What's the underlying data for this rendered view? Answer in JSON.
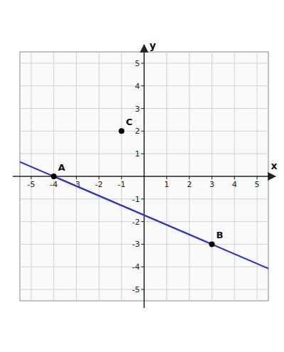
{
  "chart_data": {
    "type": "scatter",
    "x_label": "x",
    "y_label": "y",
    "xlim": [
      -5.5,
      5.5
    ],
    "ylim": [
      -5.5,
      5.5
    ],
    "xticks": [
      -5,
      -4,
      -3,
      -2,
      -1,
      1,
      2,
      3,
      4,
      5
    ],
    "yticks": [
      -5,
      -4,
      -3,
      -2,
      -1,
      1,
      2,
      3,
      4,
      5
    ],
    "grid": true,
    "series": [
      {
        "type": "line",
        "color": "#3333cc",
        "x": [
          -4,
          3
        ],
        "values": [
          0,
          -3
        ]
      },
      {
        "type": "scatter",
        "color": "#000000",
        "x": [
          -4,
          3,
          -1
        ],
        "values": [
          0,
          -3,
          2
        ]
      }
    ],
    "annotations": [
      {
        "text": "A",
        "x": -4,
        "y": 0
      },
      {
        "text": "B",
        "x": 3,
        "y": -3
      },
      {
        "text": "C",
        "x": -1,
        "y": 2
      }
    ]
  }
}
